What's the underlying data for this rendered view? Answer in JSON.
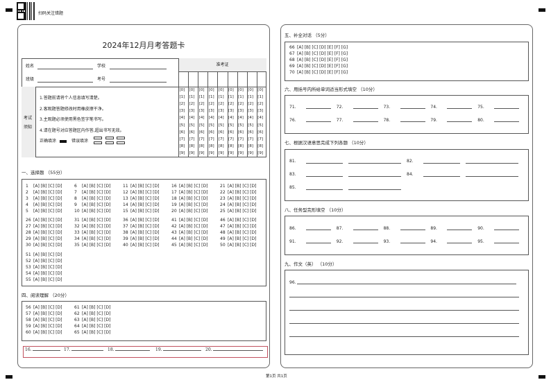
{
  "header": {
    "qr_caption": "扫码关注错题",
    "title": "2024年12月月考答题卡"
  },
  "info": {
    "name_label": "姓名",
    "school_label": "学校",
    "class_label": "班级",
    "exam_no_label": "考号",
    "ticket_label": "准考证",
    "digits": [
      "[0]",
      "[1]",
      "[2]",
      "[3]",
      "[4]",
      "[5]",
      "[6]",
      "[7]",
      "[8]",
      "[9]"
    ],
    "notice_label": "考试须知",
    "notices": [
      "1.答题前请将个人信息填写清楚。",
      "2.客观题答题修改时用橡皮擦干净。",
      "3.主观题必须使用黑色签字笔书写。",
      "4.请在题号对应答题区内作答,超出书写无效。"
    ],
    "correct_label": "正确填涂",
    "wrong_label": "错误填涂"
  },
  "s1": {
    "heading": "一、选择题 （55分）",
    "opts": "[A] [B] [C] [D]",
    "nums": [
      "1",
      "2",
      "3",
      "4",
      "5",
      "6",
      "7",
      "8",
      "9",
      "10",
      "11",
      "12",
      "13",
      "14",
      "15",
      "16",
      "17",
      "18",
      "19",
      "20",
      "21",
      "22",
      "23",
      "24",
      "25",
      "26",
      "27",
      "28",
      "29",
      "30",
      "31",
      "32",
      "33",
      "34",
      "35",
      "36",
      "37",
      "38",
      "39",
      "40",
      "41",
      "42",
      "43",
      "44",
      "45",
      "46",
      "47",
      "48",
      "49",
      "50",
      "51",
      "52",
      "53",
      "54",
      "55"
    ]
  },
  "s4": {
    "heading": "四、阅读理解 （20分）",
    "opts": "[A] [B] [C] [D]",
    "nums": [
      "56",
      "57",
      "58",
      "59",
      "60",
      "61",
      "62",
      "63",
      "64",
      "65"
    ]
  },
  "fill": {
    "nums": [
      "16.",
      "17.",
      "18.",
      "19.",
      "20."
    ]
  },
  "s5": {
    "heading": "五、补全对话 （5分）",
    "opts": "[A] [B] [C] [D] [E] [F] [G]",
    "nums": [
      "66",
      "67",
      "68",
      "69",
      "70"
    ]
  },
  "s6": {
    "heading": "六、用括号内所给单词适当形式填空 （10分）",
    "nums": [
      "71.",
      "72.",
      "73.",
      "74.",
      "75.",
      "76.",
      "77.",
      "78.",
      "79.",
      "80."
    ]
  },
  "s7": {
    "heading": "七、根据汉语意思完成下列各题 （10分）",
    "nums": [
      "81.",
      "82.",
      "83.",
      "84.",
      "85."
    ]
  },
  "s8": {
    "heading": "八、任务型完形填空 （10分）",
    "nums": [
      "86.",
      "87.",
      "88.",
      "89.",
      "90.",
      "91.",
      "92.",
      "93.",
      "94.",
      "95."
    ]
  },
  "s9": {
    "heading": "九、作文（英） （10分）",
    "num": "96."
  },
  "footer": {
    "page": "第1页 共1页"
  },
  "colors": {
    "fill_box_border": "#c0505e",
    "notice_bg": "#eeeeee"
  }
}
